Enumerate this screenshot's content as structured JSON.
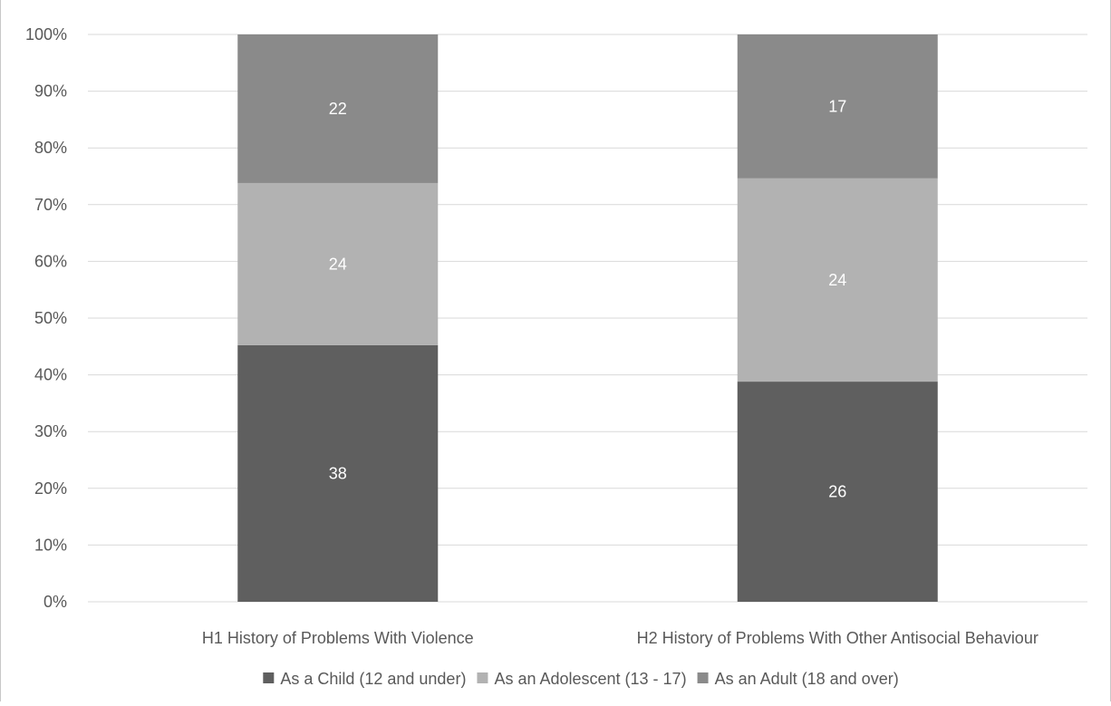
{
  "chart_data": {
    "type": "bar",
    "stacked": "percent",
    "categories": [
      "H1 History of Problems With Violence",
      "H2 History of Problems With Other Antisocial Behaviour"
    ],
    "series": [
      {
        "name": "As a Child (12 and under)",
        "values": [
          38,
          26
        ],
        "color": "#5f5f5f"
      },
      {
        "name": "As an Adolescent (13 - 17)",
        "values": [
          24,
          24
        ],
        "color": "#b2b2b2"
      },
      {
        "name": "As an Adult (18 and over)",
        "values": [
          22,
          17
        ],
        "color": "#8a8a8a"
      }
    ],
    "y_ticks": [
      "0%",
      "10%",
      "20%",
      "30%",
      "40%",
      "50%",
      "60%",
      "70%",
      "80%",
      "90%",
      "100%"
    ],
    "ylim": [
      0,
      100
    ],
    "grid": true,
    "legend": "bottom",
    "colors": {
      "grid": "#d9d9d9",
      "text": "#595959",
      "frame": "#c8c8c8"
    }
  }
}
